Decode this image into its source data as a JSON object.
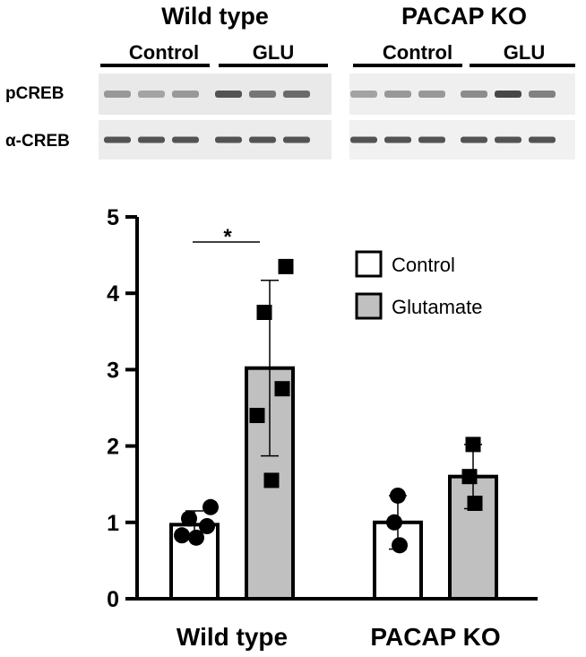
{
  "blot": {
    "panels": [
      {
        "title": "Wild type",
        "groups": [
          "Control",
          "GLU"
        ]
      },
      {
        "title": "PACAP KO",
        "groups": [
          "Control",
          "GLU"
        ]
      }
    ],
    "row_labels": [
      "pCREB",
      "α-CREB"
    ]
  },
  "chart_data": {
    "type": "bar",
    "categories": [
      "Wild type",
      "PACAP KO"
    ],
    "ylim": [
      0,
      5
    ],
    "yticks": [
      0,
      1,
      2,
      3,
      4,
      5
    ],
    "legend": {
      "position": "top-right"
    },
    "series": [
      {
        "name": "Control",
        "color": "#ffffff",
        "marker": "circle",
        "values": [
          0.97,
          1.0
        ],
        "errors": [
          0.18,
          0.35
        ],
        "points": [
          [
            1.2,
            1.05,
            0.95,
            0.83,
            0.8
          ],
          [
            1.35,
            1.0,
            0.7
          ]
        ]
      },
      {
        "name": "Glutamate",
        "color": "#c0c0c0",
        "marker": "square",
        "values": [
          3.02,
          1.6
        ],
        "errors": [
          1.15,
          0.42
        ],
        "points": [
          [
            4.35,
            3.75,
            2.75,
            2.4,
            1.55
          ],
          [
            2.02,
            1.6,
            1.25
          ]
        ]
      }
    ],
    "significance": [
      {
        "category": "Wild type",
        "label": "*"
      }
    ]
  }
}
